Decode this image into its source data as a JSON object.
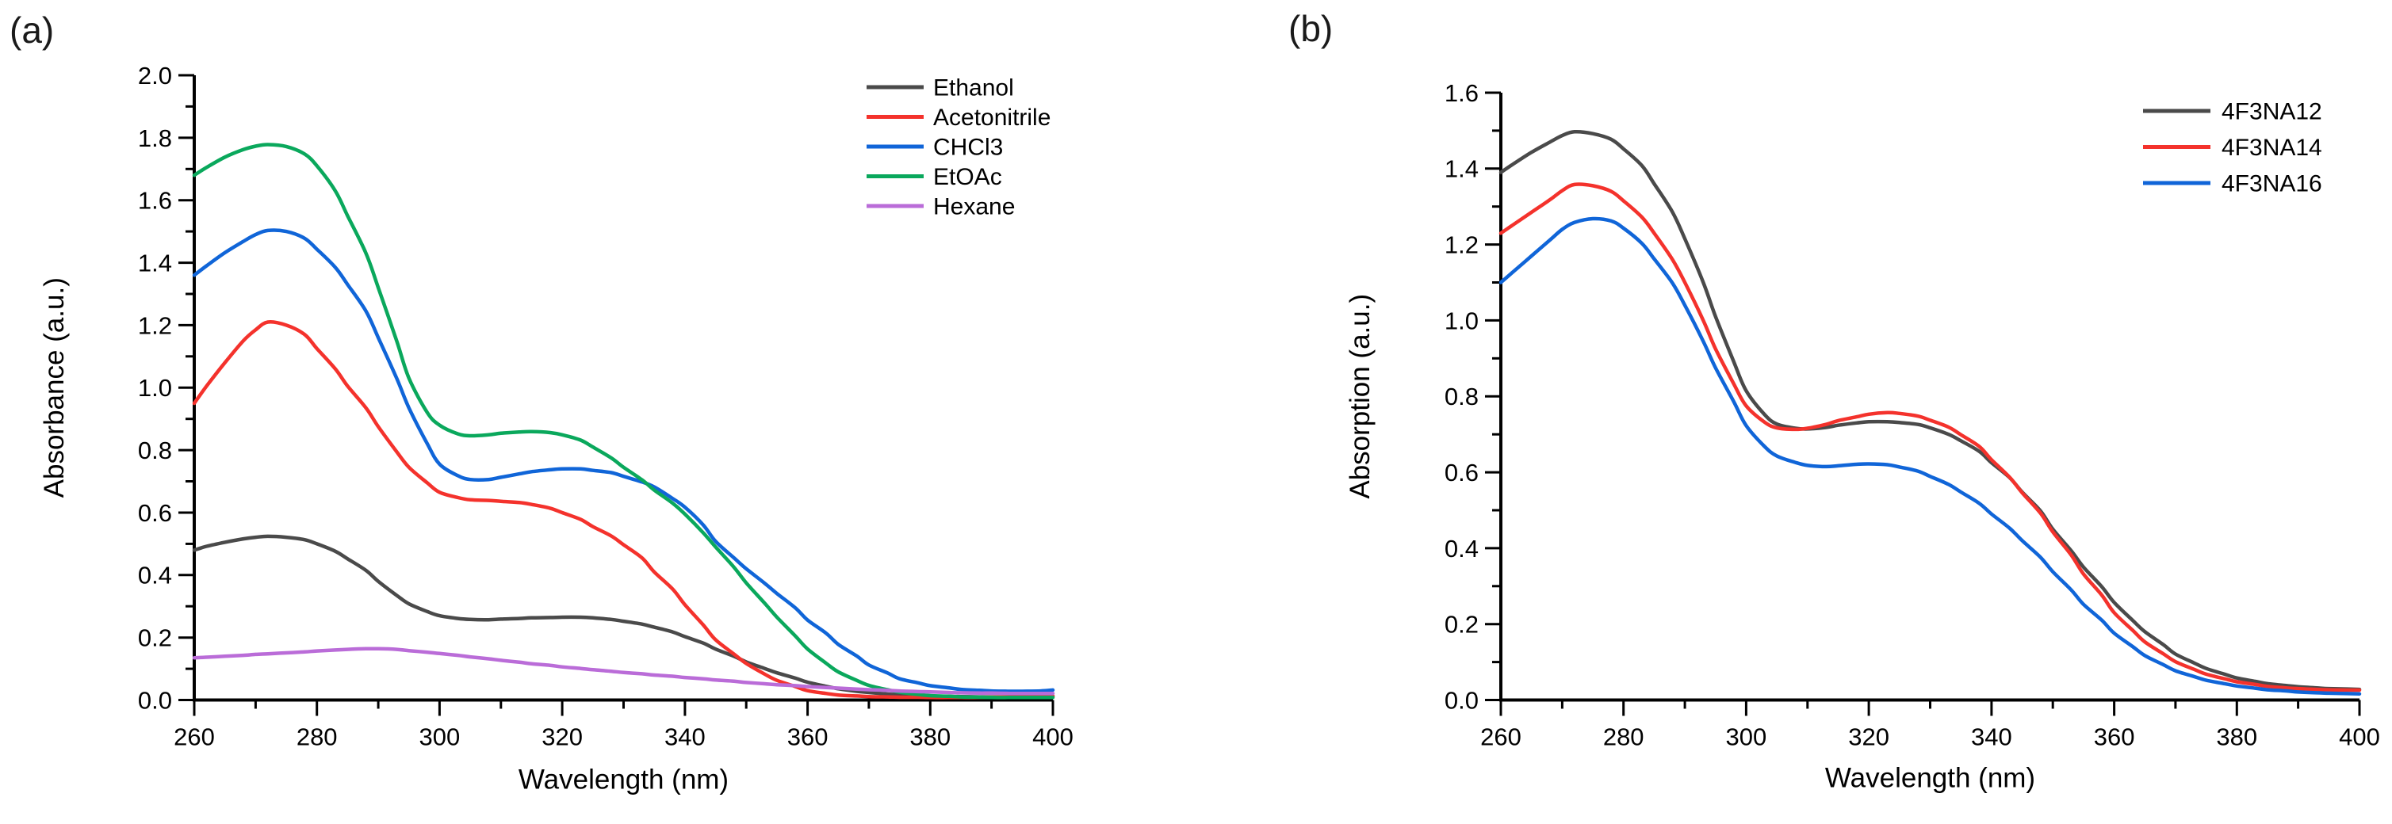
{
  "figure": {
    "background": "#ffffff",
    "panels": [
      {
        "label": "(a)"
      },
      {
        "label": "(b)"
      }
    ]
  },
  "chart_data": [
    {
      "type": "line",
      "title": "",
      "xlabel": "Wavelength (nm)",
      "ylabel": "Absorbance (a.u.)",
      "xlim": [
        260,
        400
      ],
      "ylim": [
        0,
        2.0
      ],
      "x_ticks": [
        260,
        280,
        300,
        320,
        340,
        360,
        380,
        400
      ],
      "x_tick_labels": [
        "260",
        "280",
        "300",
        "320",
        "340",
        "360",
        "380",
        "400"
      ],
      "x_minor_step": 10,
      "y_ticks": [
        0.0,
        0.2,
        0.4,
        0.6,
        0.8,
        1.0,
        1.2,
        1.4,
        1.6,
        1.8,
        2.0
      ],
      "y_tick_labels": [
        "0.0",
        "0.2",
        "0.4",
        "0.6",
        "0.8",
        "1.0",
        "1.2",
        "1.4",
        "1.6",
        "1.8",
        "2.0"
      ],
      "y_minor_step": 0.1,
      "grid": false,
      "legend_position": "top-right",
      "x": [
        260,
        262,
        265,
        268,
        270,
        272,
        275,
        278,
        280,
        283,
        285,
        288,
        290,
        293,
        295,
        298,
        300,
        303,
        305,
        308,
        310,
        313,
        315,
        318,
        320,
        323,
        325,
        328,
        330,
        333,
        335,
        338,
        340,
        343,
        345,
        348,
        350,
        353,
        355,
        358,
        360,
        363,
        365,
        368,
        370,
        373,
        375,
        378,
        380,
        383,
        385,
        388,
        390,
        393,
        395,
        398,
        400
      ],
      "series": [
        {
          "name": "Ethanol",
          "color": "#4a4a4a",
          "values": [
            0.48,
            0.492,
            0.505,
            0.516,
            0.521,
            0.524,
            0.521,
            0.513,
            0.5,
            0.476,
            0.452,
            0.415,
            0.38,
            0.335,
            0.308,
            0.283,
            0.27,
            0.261,
            0.258,
            0.257,
            0.259,
            0.261,
            0.263,
            0.264,
            0.265,
            0.265,
            0.263,
            0.258,
            0.252,
            0.243,
            0.233,
            0.218,
            0.203,
            0.182,
            0.163,
            0.14,
            0.122,
            0.101,
            0.087,
            0.07,
            0.057,
            0.044,
            0.036,
            0.028,
            0.024,
            0.019,
            0.017,
            0.014,
            0.013,
            0.011,
            0.011,
            0.01,
            0.01,
            0.01,
            0.01,
            0.011,
            0.012
          ]
        },
        {
          "name": "Acetonitrile",
          "color": "#f4322c",
          "values": [
            0.95,
            1.005,
            1.08,
            1.15,
            1.185,
            1.21,
            1.2,
            1.17,
            1.125,
            1.06,
            1.005,
            0.935,
            0.875,
            0.795,
            0.745,
            0.695,
            0.665,
            0.648,
            0.641,
            0.639,
            0.636,
            0.632,
            0.626,
            0.614,
            0.6,
            0.578,
            0.555,
            0.525,
            0.497,
            0.455,
            0.41,
            0.355,
            0.305,
            0.24,
            0.193,
            0.147,
            0.117,
            0.083,
            0.063,
            0.043,
            0.03,
            0.021,
            0.016,
            0.013,
            0.011,
            0.01,
            0.009,
            0.009,
            0.008,
            0.008,
            0.008,
            0.008,
            0.009,
            0.01,
            0.011,
            0.012,
            0.013
          ]
        },
        {
          "name": "CHCl3",
          "color": "#1065d8",
          "values": [
            1.36,
            1.39,
            1.432,
            1.468,
            1.49,
            1.503,
            1.5,
            1.478,
            1.443,
            1.385,
            1.33,
            1.245,
            1.16,
            1.03,
            0.935,
            0.82,
            0.755,
            0.718,
            0.706,
            0.706,
            0.713,
            0.724,
            0.731,
            0.737,
            0.74,
            0.74,
            0.735,
            0.728,
            0.716,
            0.698,
            0.682,
            0.645,
            0.617,
            0.56,
            0.508,
            0.455,
            0.42,
            0.374,
            0.341,
            0.295,
            0.256,
            0.214,
            0.178,
            0.141,
            0.112,
            0.087,
            0.068,
            0.055,
            0.046,
            0.039,
            0.034,
            0.031,
            0.029,
            0.028,
            0.028,
            0.029,
            0.032
          ]
        },
        {
          "name": "EtOAc",
          "color": "#0aa85c",
          "values": [
            1.68,
            1.705,
            1.738,
            1.762,
            1.773,
            1.778,
            1.772,
            1.748,
            1.71,
            1.63,
            1.55,
            1.43,
            1.32,
            1.15,
            1.03,
            0.92,
            0.88,
            0.852,
            0.846,
            0.849,
            0.854,
            0.858,
            0.859,
            0.856,
            0.849,
            0.832,
            0.81,
            0.775,
            0.745,
            0.705,
            0.672,
            0.63,
            0.595,
            0.535,
            0.49,
            0.425,
            0.375,
            0.31,
            0.265,
            0.205,
            0.163,
            0.118,
            0.09,
            0.063,
            0.047,
            0.033,
            0.025,
            0.018,
            0.014,
            0.012,
            0.01,
            0.009,
            0.008,
            0.008,
            0.008,
            0.008,
            0.008
          ]
        },
        {
          "name": "Hexane",
          "color": "#ba6cd8",
          "values": [
            0.135,
            0.137,
            0.14,
            0.143,
            0.146,
            0.148,
            0.151,
            0.154,
            0.157,
            0.16,
            0.162,
            0.164,
            0.164,
            0.162,
            0.158,
            0.153,
            0.149,
            0.143,
            0.138,
            0.132,
            0.127,
            0.121,
            0.116,
            0.111,
            0.106,
            0.101,
            0.097,
            0.092,
            0.088,
            0.084,
            0.08,
            0.076,
            0.072,
            0.068,
            0.064,
            0.06,
            0.056,
            0.052,
            0.049,
            0.046,
            0.043,
            0.04,
            0.038,
            0.035,
            0.033,
            0.031,
            0.029,
            0.027,
            0.026,
            0.024,
            0.023,
            0.022,
            0.022,
            0.021,
            0.021,
            0.021,
            0.021
          ]
        }
      ]
    },
    {
      "type": "line",
      "title": "",
      "xlabel": "Wavelength (nm)",
      "ylabel": "Absorption (a.u.)",
      "xlim": [
        260,
        400
      ],
      "ylim": [
        0,
        1.6
      ],
      "x_ticks": [
        260,
        280,
        300,
        320,
        340,
        360,
        380,
        400
      ],
      "x_tick_labels": [
        "260",
        "280",
        "300",
        "320",
        "340",
        "360",
        "380",
        "400"
      ],
      "x_minor_step": 10,
      "y_ticks": [
        0.0,
        0.2,
        0.4,
        0.6,
        0.8,
        1.0,
        1.2,
        1.4,
        1.6
      ],
      "y_tick_labels": [
        "0.0",
        "0.2",
        "0.4",
        "0.6",
        "0.8",
        "1.0",
        "1.2",
        "1.4",
        "1.6"
      ],
      "y_minor_step": 0.1,
      "grid": false,
      "legend_position": "top-right",
      "x": [
        260,
        262,
        265,
        268,
        270,
        272,
        275,
        278,
        280,
        283,
        285,
        288,
        290,
        293,
        295,
        298,
        300,
        303,
        305,
        308,
        310,
        313,
        315,
        318,
        320,
        323,
        325,
        328,
        330,
        333,
        335,
        338,
        340,
        343,
        345,
        348,
        350,
        353,
        355,
        358,
        360,
        363,
        365,
        368,
        370,
        373,
        375,
        378,
        380,
        383,
        385,
        388,
        390,
        393,
        395,
        398,
        400
      ],
      "series": [
        {
          "name": "4F3NA12",
          "color": "#4a4a4a",
          "values": [
            1.39,
            1.412,
            1.443,
            1.47,
            1.487,
            1.497,
            1.492,
            1.477,
            1.452,
            1.408,
            1.36,
            1.285,
            1.215,
            1.1,
            1.01,
            0.89,
            0.815,
            0.752,
            0.727,
            0.716,
            0.714,
            0.718,
            0.724,
            0.73,
            0.733,
            0.733,
            0.731,
            0.726,
            0.717,
            0.7,
            0.683,
            0.655,
            0.625,
            0.585,
            0.548,
            0.498,
            0.45,
            0.393,
            0.35,
            0.298,
            0.257,
            0.21,
            0.18,
            0.146,
            0.121,
            0.098,
            0.083,
            0.068,
            0.058,
            0.049,
            0.043,
            0.038,
            0.035,
            0.032,
            0.03,
            0.029,
            0.028
          ]
        },
        {
          "name": "4F3NA14",
          "color": "#f4322c",
          "values": [
            1.23,
            1.252,
            1.285,
            1.318,
            1.342,
            1.358,
            1.355,
            1.34,
            1.315,
            1.272,
            1.23,
            1.16,
            1.1,
            1.0,
            0.925,
            0.832,
            0.775,
            0.732,
            0.717,
            0.713,
            0.716,
            0.726,
            0.736,
            0.746,
            0.753,
            0.757,
            0.755,
            0.748,
            0.737,
            0.719,
            0.699,
            0.668,
            0.633,
            0.586,
            0.546,
            0.492,
            0.443,
            0.382,
            0.332,
            0.276,
            0.23,
            0.184,
            0.153,
            0.122,
            0.101,
            0.081,
            0.068,
            0.056,
            0.048,
            0.041,
            0.036,
            0.032,
            0.03,
            0.028,
            0.027,
            0.026,
            0.026
          ]
        },
        {
          "name": "4F3NA16",
          "color": "#1065d8",
          "values": [
            1.1,
            1.128,
            1.17,
            1.212,
            1.24,
            1.258,
            1.268,
            1.262,
            1.243,
            1.203,
            1.162,
            1.098,
            1.04,
            0.945,
            0.875,
            0.785,
            0.723,
            0.668,
            0.643,
            0.626,
            0.618,
            0.615,
            0.617,
            0.621,
            0.622,
            0.62,
            0.614,
            0.603,
            0.589,
            0.568,
            0.548,
            0.518,
            0.49,
            0.452,
            0.42,
            0.376,
            0.338,
            0.29,
            0.252,
            0.21,
            0.176,
            0.141,
            0.117,
            0.093,
            0.077,
            0.062,
            0.052,
            0.043,
            0.037,
            0.031,
            0.027,
            0.024,
            0.021,
            0.019,
            0.018,
            0.017,
            0.016
          ]
        }
      ]
    }
  ]
}
